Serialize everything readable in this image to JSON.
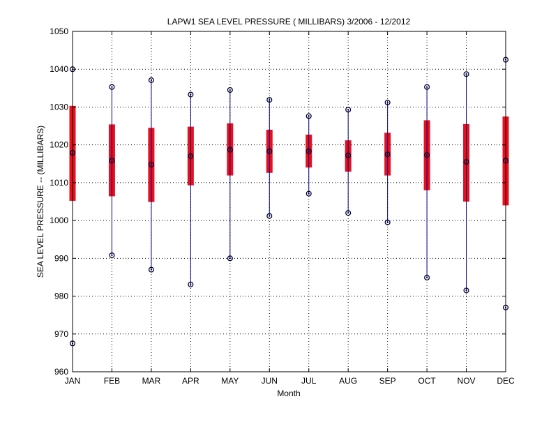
{
  "chart_data": {
    "type": "box",
    "title": "LAPW1  SEA LEVEL PRESSURE ( MILLIBARS) 3/2006 - 12/2012",
    "xlabel": "Month",
    "ylabel": "SEA LEVEL PRESSURE -- (MILLIBARS)",
    "ylim": [
      960,
      1050
    ],
    "yticks": [
      960,
      970,
      980,
      990,
      1000,
      1010,
      1020,
      1030,
      1040,
      1050
    ],
    "grid": true,
    "categories": [
      "JAN",
      "FEB",
      "MAR",
      "APR",
      "MAY",
      "JUN",
      "JUL",
      "AUG",
      "SEP",
      "OCT",
      "NOV",
      "DEC"
    ],
    "max": [
      1040.0,
      1035.3,
      1037.1,
      1033.3,
      1034.5,
      1031.9,
      1027.6,
      1029.3,
      1031.2,
      1035.3,
      1038.7,
      1042.5
    ],
    "upper": [
      1030.3,
      1025.4,
      1024.5,
      1024.8,
      1025.7,
      1024.0,
      1022.7,
      1021.2,
      1023.2,
      1026.5,
      1025.5,
      1027.5
    ],
    "mean": [
      1017.9,
      1015.8,
      1014.8,
      1017.0,
      1018.7,
      1018.3,
      1018.3,
      1017.2,
      1017.5,
      1017.3,
      1015.5,
      1015.8
    ],
    "lower": [
      1005.2,
      1006.4,
      1004.9,
      1009.3,
      1011.9,
      1012.6,
      1014.0,
      1012.9,
      1011.9,
      1008.0,
      1005.0,
      1004.0
    ],
    "min": [
      967.5,
      990.8,
      987.0,
      983.1,
      990.0,
      1001.2,
      1007.1,
      1002.0,
      999.5,
      984.9,
      981.5,
      977.0
    ],
    "colors": {
      "whisker": "#00008B",
      "box": "#E8101E",
      "marker": "#000033",
      "grid": "#000000",
      "axis": "#000000"
    }
  }
}
